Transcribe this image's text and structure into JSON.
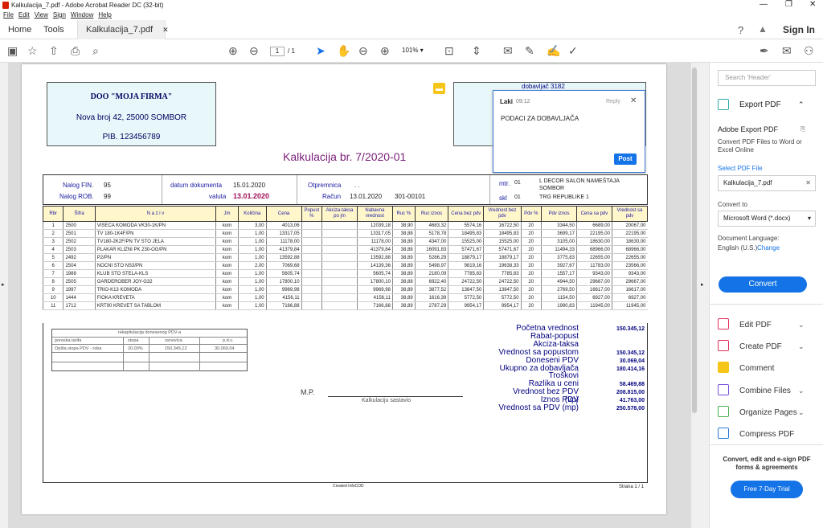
{
  "window": {
    "title": "Kalkulacija_7.pdf - Adobe Acrobat Reader DC (32-bit)"
  },
  "menu": [
    "File",
    "Edit",
    "View",
    "Sign",
    "Window",
    "Help"
  ],
  "tabs": {
    "home": "Home",
    "tools": "Tools",
    "doc": "Kalkulacija_7.pdf",
    "sign_in": "Sign In"
  },
  "toolbar": {
    "page_current": "1",
    "page_total": "/ 1",
    "zoom": "101%"
  },
  "firm": {
    "name": "DOO  \"MOJA FIRMA\"",
    "address": "Nova broj 42, 25000 SOMBOR",
    "pib": "PIB. 123456789"
  },
  "supplier_box": {
    "label": "dobavljač  3182"
  },
  "doc_title": "Kalkulacija    br.   7/2020-01",
  "header": {
    "nalog_fin_label": "Nalog FIN.",
    "nalog_fin": "95",
    "nalog_rob_label": "Nalog ROB.",
    "nalog_rob": "99",
    "datum_label": "datum dokumenta",
    "datum": "15.01.2020",
    "valuta_label": "valuta",
    "valuta": "13.01.2020",
    "otpremnica_label": "Otpremnica",
    "otpremnica": ". .",
    "racun_label": "Račun",
    "racun_date": "13.01.2020",
    "racun_no": "301-00101",
    "mtr_label": "mtr.",
    "mtr": "01",
    "skl_label": "skl",
    "skl": "01",
    "mtr_name": "L DECOR  SALON NAMEŠTAJA",
    "mtr_city": "SOMBOR",
    "skl_name": "TRG REPUBLIKE 1"
  },
  "columns": [
    "Rbr",
    "Šifra",
    "N a z i v",
    "Jm",
    "Količina",
    "Cena",
    "Popust %",
    "Akciza-taksa po jm",
    "Nabavna vrednost",
    "Ruc %",
    "Ruc iznos",
    "Cena bez pdv",
    "Vrednost bez pdv",
    "Pdv %",
    "Pdv iznos",
    "Cena sa pdv",
    "Vrednost sa pdv"
  ],
  "rows": [
    [
      "1",
      "2500",
      "VISECA KOMODA VK30-1K/PN",
      "kom",
      "3,00",
      "4013,06",
      "",
      "",
      "12039,18",
      "38,90",
      "4683,32",
      "5574,16",
      "16722,50",
      "20",
      "3344,50",
      "6689,00",
      "20067,00"
    ],
    [
      "2",
      "2501",
      "TV 180-1K4F/PN",
      "kom",
      "1,00",
      "13317,05",
      "",
      "",
      "13317,05",
      "38,88",
      "5178,78",
      "18495,83",
      "18495,83",
      "20",
      "3699,17",
      "22195,00",
      "22195,00"
    ],
    [
      "3",
      "2502",
      "TV180-2K2F/PN TV STO JELA",
      "kom",
      "1,00",
      "11178,00",
      "",
      "",
      "11178,00",
      "38,88",
      "4347,00",
      "15525,00",
      "15525,00",
      "20",
      "3105,00",
      "18630,00",
      "18630,00"
    ],
    [
      "4",
      "2503",
      "PLAKAR KLIZNI PK 230-OG/PN",
      "kom",
      "1,00",
      "41379,84",
      "",
      "",
      "41379,84",
      "38,88",
      "16091,83",
      "57471,67",
      "57471,67",
      "20",
      "11494,33",
      "68966,00",
      "68966,00"
    ],
    [
      "5",
      "2492",
      "P2/PN",
      "kom",
      "1,00",
      "13592,88",
      "",
      "",
      "13592,88",
      "38,89",
      "5286,29",
      "18879,17",
      "18879,17",
      "20",
      "3775,83",
      "22655,00",
      "22655,00"
    ],
    [
      "6",
      "2504",
      "NOCNI STO NS3/PN",
      "kom",
      "2,00",
      "7069,68",
      "",
      "",
      "14139,36",
      "38,89",
      "5498,97",
      "9819,16",
      "19638,33",
      "20",
      "3927,67",
      "11783,00",
      "23566,00"
    ],
    [
      "7",
      "1988",
      "KLUB STO STELA-KLS",
      "kom",
      "1,00",
      "5605,74",
      "",
      "",
      "5605,74",
      "38,89",
      "2180,09",
      "7785,83",
      "7785,83",
      "20",
      "1557,17",
      "9343,00",
      "9343,00"
    ],
    [
      "8",
      "2505",
      "GARDEROBER JOY-G32",
      "kom",
      "1,00",
      "17800,10",
      "",
      "",
      "17800,10",
      "38,88",
      "6922,40",
      "24722,50",
      "24722,50",
      "20",
      "4944,50",
      "29667,00",
      "29667,00"
    ],
    [
      "9",
      "1997",
      "TRIO-K13 KOMODA",
      "kom",
      "1,00",
      "9969,98",
      "",
      "",
      "9969,98",
      "38,89",
      "3877,52",
      "13847,50",
      "13847,50",
      "20",
      "2769,50",
      "16617,00",
      "16617,00"
    ],
    [
      "10",
      "1444",
      "FIOKA KREVETA",
      "kom",
      "1,00",
      "4156,11",
      "",
      "",
      "4156,11",
      "38,89",
      "1616,39",
      "5772,50",
      "5772,50",
      "20",
      "1154,50",
      "6927,00",
      "6927,00"
    ],
    [
      "11",
      "1712",
      "KRT90 KREVET SA TABLOM",
      "kom",
      "1,00",
      "7166,88",
      "",
      "",
      "7166,88",
      "38,89",
      "2787,29",
      "9954,17",
      "9954,17",
      "20",
      "1990,83",
      "11945,00",
      "11945,00"
    ]
  ],
  "rekap": {
    "title": "rekapitulacija donesenog PDV-a",
    "cols": [
      "poreska tarifa",
      "stopa",
      "osnovica",
      "p.d.v."
    ],
    "row": [
      "Opšta stopa PDV - roba",
      "20,00%",
      "150.345,12",
      "30.069,04"
    ]
  },
  "totals": [
    {
      "label": "Početna vrednost",
      "value": "150.345,12"
    },
    {
      "label": "Rabat-popust",
      "value": ""
    },
    {
      "label": "Akciza-taksa",
      "value": ""
    },
    {
      "label": "Vrednost sa popustom",
      "value": "150.345,12"
    },
    {
      "label": "Doneseni PDV",
      "value": "30.069,04"
    },
    {
      "label": "Ukupno za dobavljača",
      "value": "180.414,16"
    },
    {
      "label": "Troškovi",
      "value": ""
    },
    {
      "label": "Razlika u ceni",
      "value": "58.469,88"
    },
    {
      "label": "Vrednost bez PDV (vp)",
      "value": "208.815,00"
    },
    {
      "label": "Iznos PDV",
      "value": "41.763,00"
    },
    {
      "label": "Vrednost sa PDV (mp)",
      "value": "250.578,00"
    }
  ],
  "footer": {
    "mp": "M.P.",
    "sastavio": "Kalkulaciju sastavio",
    "created": "Created  InfoCOD",
    "page": "Strana 1 / 1"
  },
  "comment": {
    "author": "Laki",
    "time": "09:12",
    "reply": "Reply",
    "text": "PODACI ZA DOBAVLJAČA",
    "post": "Post"
  },
  "panel": {
    "search_placeholder": "Search 'Header'",
    "export_title": "Export PDF",
    "adobe_export": "Adobe Export PDF",
    "desc": "Convert PDF Files to Word or Excel Online",
    "select_file": "Select PDF File",
    "file": "Kalkulacija_7.pdf",
    "convert_to": "Convert to",
    "format": "Microsoft Word (*.docx)",
    "lang_label": "Document Language:",
    "lang": "English (U.S.)",
    "change": "Change",
    "convert": "Convert",
    "tools": [
      "Edit PDF",
      "Create PDF",
      "Comment",
      "Combine Files",
      "Organize Pages",
      "Compress PDF"
    ],
    "promo": "Convert, edit and e-sign PDF forms & agreements",
    "trial": "Free 7-Day Trial"
  }
}
